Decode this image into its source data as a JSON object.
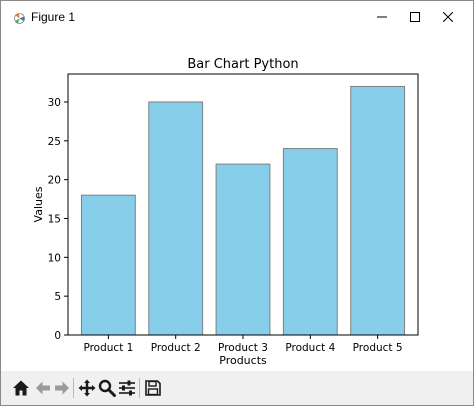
{
  "window": {
    "title": "Figure 1",
    "controls": {
      "minimize_icon": "minimize-icon",
      "maximize_icon": "maximize-icon",
      "close_icon": "close-icon"
    }
  },
  "chart_data": {
    "type": "bar",
    "title": "Bar Chart Python",
    "xlabel": "Products",
    "ylabel": "Values",
    "categories": [
      "Product 1",
      "Product 2",
      "Product 3",
      "Product 4",
      "Product 5"
    ],
    "values": [
      18,
      30,
      22,
      24,
      32
    ],
    "ylim": [
      0,
      33.6
    ],
    "yticks": [
      0,
      5,
      10,
      15,
      20,
      25,
      30
    ],
    "grid": false,
    "bar_color": "#87ceeb",
    "edge_color": "#808080"
  },
  "toolbar": {
    "buttons": [
      {
        "name": "home-button",
        "icon": "home-icon"
      },
      {
        "name": "back-button",
        "icon": "back-arrow-icon"
      },
      {
        "name": "forward-button",
        "icon": "forward-arrow-icon"
      },
      {
        "name": "pan-button",
        "icon": "move-icon"
      },
      {
        "name": "zoom-button",
        "icon": "zoom-icon"
      },
      {
        "name": "configure-subplots-button",
        "icon": "sliders-icon"
      },
      {
        "name": "save-button",
        "icon": "save-icon"
      }
    ]
  }
}
